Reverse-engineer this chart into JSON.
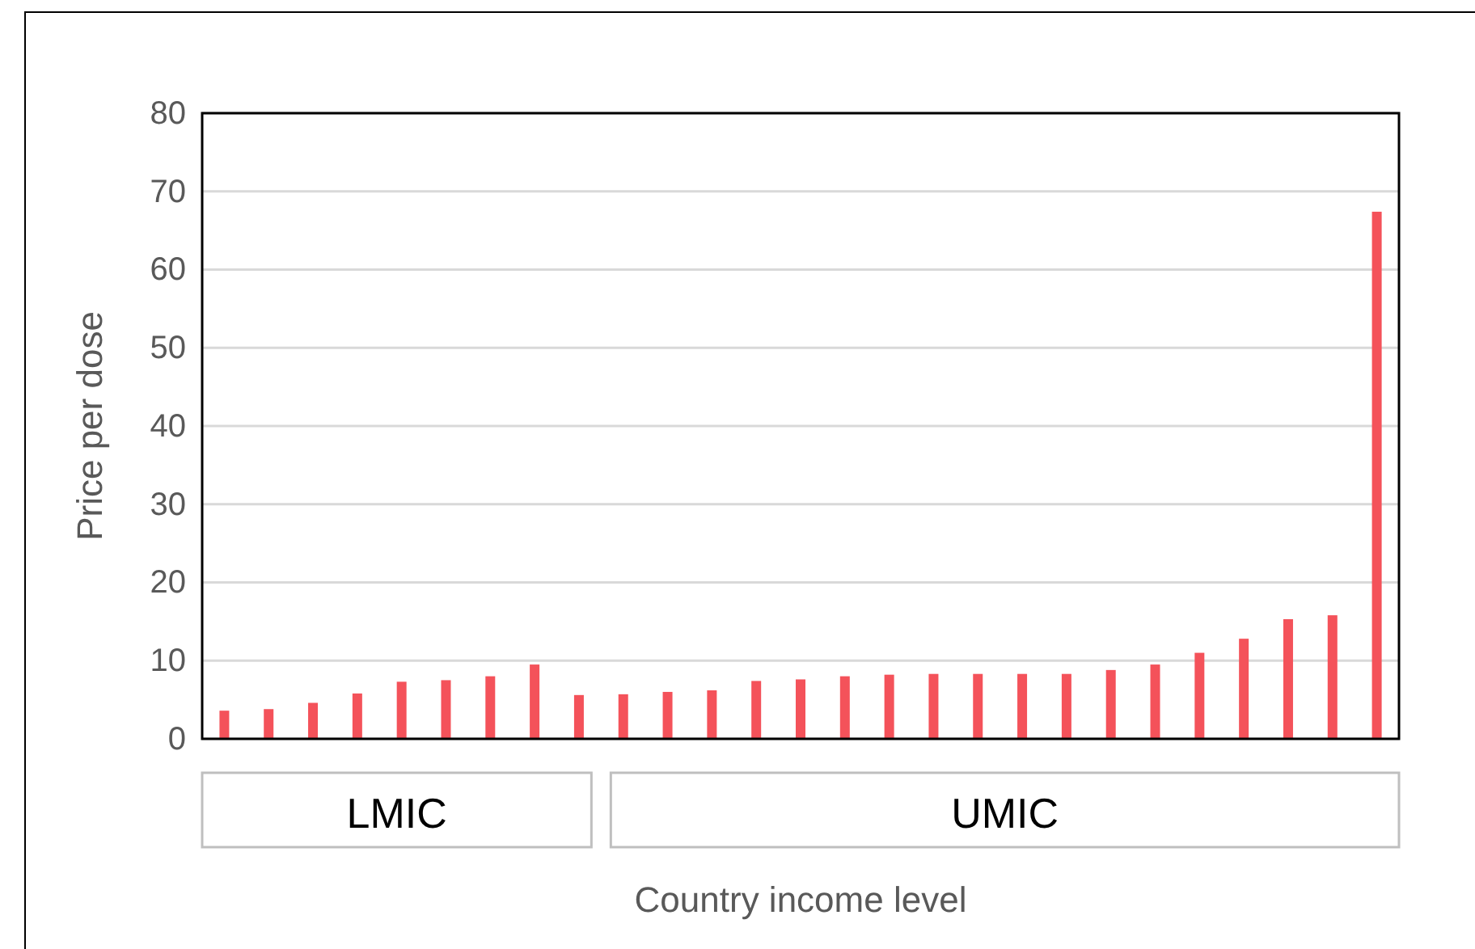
{
  "chart_data": {
    "type": "bar",
    "xlabel": "Country income level",
    "ylabel": "Price per dose",
    "categories": [
      null,
      null,
      null,
      null,
      null,
      null,
      null,
      null,
      null,
      null,
      null,
      null,
      null,
      null,
      null,
      null,
      null,
      null,
      null,
      null,
      null,
      null,
      null,
      null,
      null,
      null,
      null
    ],
    "values": [
      3.6,
      3.8,
      4.6,
      5.8,
      7.3,
      7.5,
      8.0,
      9.5,
      5.6,
      5.7,
      6.0,
      6.2,
      7.4,
      7.6,
      8.0,
      8.2,
      8.3,
      8.3,
      8.3,
      8.3,
      8.8,
      9.5,
      11.0,
      12.8,
      15.3,
      15.8,
      67.4
    ],
    "color": "#f4525a",
    "ylim": [
      0,
      80
    ],
    "yticks": [
      0,
      10,
      20,
      30,
      40,
      50,
      60,
      70,
      80
    ],
    "grid": "y",
    "annotations": [
      "LMIC",
      "UMIC"
    ]
  }
}
